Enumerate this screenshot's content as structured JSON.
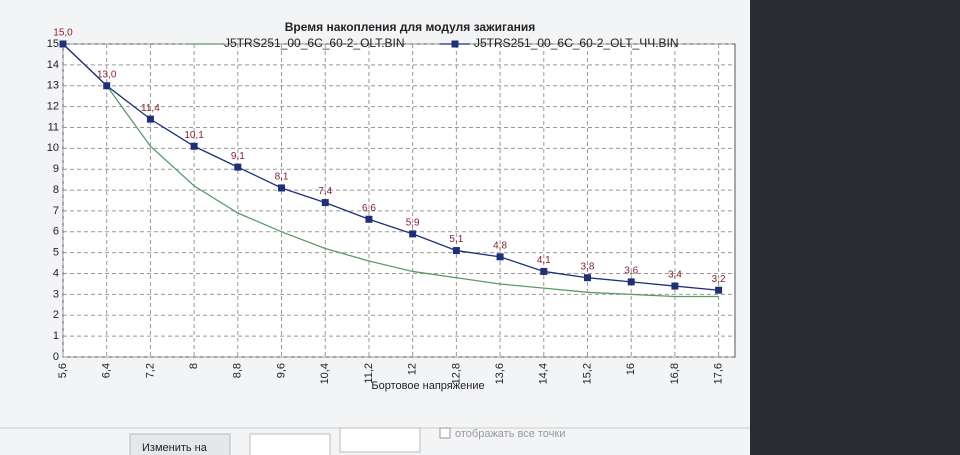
{
  "chart_data": {
    "type": "line",
    "title": "Время накопления для модуля зажигания",
    "x_label": "Бортовое напряжение",
    "x": [
      5.6,
      6.4,
      7.2,
      8,
      8.8,
      9.6,
      10.4,
      11.2,
      12,
      12.8,
      13.6,
      14.4,
      15.2,
      16,
      16.8,
      17.6
    ],
    "series": [
      {
        "name": "J5TRS251_00_6C_60-2_OLT.BIN",
        "color": "#5a9a6a",
        "markers": false,
        "values": [
          15.0,
          13.0,
          10.1,
          8.2,
          6.9,
          6.0,
          5.2,
          4.6,
          4.1,
          3.8,
          3.5,
          3.3,
          3.1,
          3.0,
          2.9,
          2.9
        ]
      },
      {
        "name": "J5TRS251_00_6C_60-2_OLT_ЧЧ.BIN",
        "color": "#1f2f7a",
        "markers": true,
        "values": [
          15.0,
          13.0,
          11.4,
          10.1,
          9.1,
          8.1,
          7.4,
          6.6,
          5.9,
          5.1,
          4.8,
          4.1,
          3.8,
          3.6,
          3.4,
          3.2
        ],
        "value_labels": [
          "15,0",
          "13,0",
          "11,4",
          "10,1",
          "9,1",
          "8,1",
          "7,4",
          "6,6",
          "5,9",
          "5,1",
          "4,8",
          "4,1",
          "3,8",
          "3,6",
          "3,4",
          "3,2"
        ]
      }
    ],
    "xlim": [
      5.6,
      17.9
    ],
    "xticks": [
      {
        "value": 5.6,
        "label": "5,6"
      },
      {
        "value": 6.4,
        "label": "6,4"
      },
      {
        "value": 7.2,
        "label": "7,2"
      },
      8,
      {
        "value": 8.8,
        "label": "8,8"
      },
      {
        "value": 9.6,
        "label": "9,6"
      },
      {
        "value": 10.4,
        "label": "10,4"
      },
      {
        "value": 11.2,
        "label": "11,2"
      },
      12,
      {
        "value": 12.8,
        "label": "12,8"
      },
      {
        "value": 13.6,
        "label": "13,6"
      },
      {
        "value": 14.4,
        "label": "14,4"
      },
      {
        "value": 15.2,
        "label": "15,2"
      },
      16,
      {
        "value": 16.8,
        "label": "16,8"
      },
      {
        "value": 17.6,
        "label": "17,6"
      }
    ],
    "ylim": [
      0,
      15
    ],
    "yticks": [
      0,
      1,
      2,
      3,
      4,
      5,
      6,
      7,
      8,
      9,
      10,
      11,
      12,
      13,
      14,
      15
    ],
    "grid": true
  },
  "controls": {
    "button": "Изменить на",
    "checkbox": "отображать все точки"
  }
}
